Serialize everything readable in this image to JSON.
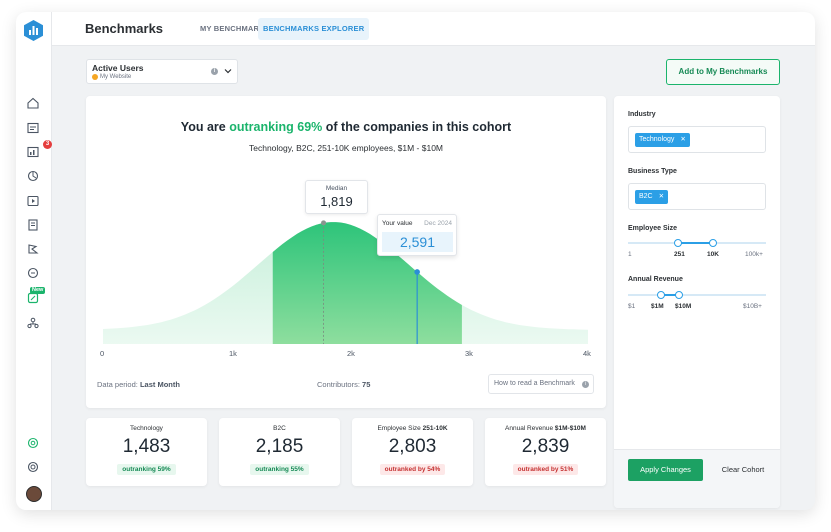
{
  "header": {
    "title": "Benchmarks",
    "tabs": [
      {
        "label": "MY BENCHMARKS",
        "active": false
      },
      {
        "label": "BENCHMARKS EXPLORER",
        "active": true
      }
    ]
  },
  "sidebar": {
    "icons": [
      "home-icon",
      "dashboard-icon",
      "reports-icon",
      "integrations-icon",
      "media-icon",
      "library-icon",
      "goals-icon",
      "search-icon",
      "benchmarks-icon",
      "team-icon",
      "settings-icon",
      "help-icon"
    ],
    "notification_count": "3",
    "new_label": "New"
  },
  "metric": {
    "name": "Active Users",
    "source": "My Website"
  },
  "add_button": "Add to My Benchmarks",
  "headline": {
    "prefix": "You are ",
    "highlight": "outranking 69%",
    "suffix": " of the companies in this cohort"
  },
  "cohort_description": "Technology, B2C, 251-10K employees, $1M - $10M",
  "median": {
    "label": "Median",
    "value": "1,819"
  },
  "your_value": {
    "label": "Your value",
    "date": "Dec 2024",
    "value": "2,591"
  },
  "chart_data": {
    "type": "area",
    "x_ticks": [
      "0",
      "1k",
      "2k",
      "3k",
      "4k"
    ],
    "xlim": [
      0,
      4000
    ],
    "median": 1819,
    "your_value": 2591,
    "highlight_range": [
      1819,
      2591
    ],
    "shaded_range": [
      1400,
      2960
    ],
    "distribution_peak": 1900
  },
  "footer": {
    "data_period_label": "Data period: ",
    "data_period_value": "Last Month",
    "contributors_label": "Contributors: ",
    "contributors_value": "75",
    "how_to_read": "How to read a Benchmark"
  },
  "stats": [
    {
      "label": "Technology",
      "label_bold": "",
      "value": "1,483",
      "status": "outranking 59%",
      "good": true
    },
    {
      "label": "B2C",
      "label_bold": "",
      "value": "2,185",
      "status": "outranking 55%",
      "good": true
    },
    {
      "label": "Employee Size ",
      "label_bold": "251-10K",
      "value": "2,803",
      "status": "outranked by 54%",
      "good": false
    },
    {
      "label": "Annual Revenue ",
      "label_bold": "$1M-$10M",
      "value": "2,839",
      "status": "outranked by 51%",
      "good": false
    }
  ],
  "filters": {
    "industry": {
      "label": "Industry",
      "chip": "Technology"
    },
    "business_type": {
      "label": "Business Type",
      "chip": "B2C"
    },
    "employee_size": {
      "label": "Employee Size",
      "ticks": [
        "1",
        "251",
        "10K",
        "100k+"
      ],
      "selected": [
        "251",
        "10K"
      ]
    },
    "annual_revenue": {
      "label": "Annual Revenue",
      "ticks": [
        "$1",
        "$1M",
        "$10M",
        "$10B+"
      ],
      "selected": [
        "$1M",
        "$10M"
      ]
    },
    "apply_label": "Apply Changes",
    "clear_label": "Clear Cohort"
  },
  "colors": {
    "accent_green": "#1bb46c",
    "accent_blue": "#2b9fe6",
    "bad_red": "#c53030"
  }
}
